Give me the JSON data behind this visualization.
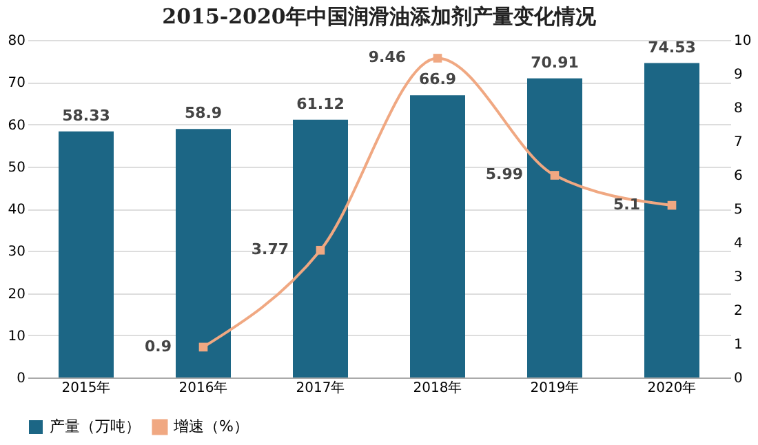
{
  "chart_data": {
    "type": "bar",
    "title": "2015-2020年中国润滑油添加剂产量变化情况",
    "categories": [
      "2015年",
      "2016年",
      "2017年",
      "2018年",
      "2019年",
      "2020年"
    ],
    "series": [
      {
        "name": "产量（万吨）",
        "color": "#1c6685",
        "values": [
          58.33,
          58.9,
          61.12,
          66.9,
          70.91,
          74.53
        ]
      },
      {
        "name": "增速（%）",
        "type": "line",
        "axis": "y2",
        "color": "#f0a882",
        "marker": "square",
        "values": [
          null,
          0.9,
          3.77,
          9.46,
          5.99,
          5.1
        ]
      }
    ],
    "ylim": [
      0,
      80
    ],
    "yticks": [
      0,
      10,
      20,
      30,
      40,
      50,
      60,
      70,
      80
    ],
    "y2lim": [
      0,
      10
    ],
    "y2ticks": [
      0,
      1,
      2,
      3,
      4,
      5,
      6,
      7,
      8,
      9,
      10
    ],
    "grid": "y",
    "legend": "bottom",
    "data_labels": true
  }
}
